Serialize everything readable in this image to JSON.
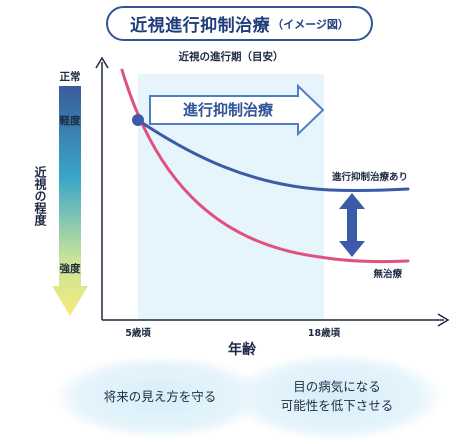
{
  "title": {
    "main": "近視進行抑制治療",
    "sub": "（イメージ図）"
  },
  "chart_data": {
    "type": "line",
    "title": "近視の進行期（目安）",
    "xlabel": "年齢",
    "ylabel": "近視の程度",
    "x_ticks": [
      "5歳頃",
      "18歳頃"
    ],
    "y_scale_labels": [
      "正常",
      "軽度",
      "強度"
    ],
    "band_label": "進行抑制治療",
    "series": [
      {
        "name": "進行抑制治療あり",
        "color": "#3b5aa8"
      },
      {
        "name": "無治療",
        "color": "#e2507f"
      }
    ],
    "comparison_arrow": true
  },
  "colors": {
    "band": "#e6f4fb",
    "gradient": [
      "#3a5c9b",
      "#3aa6c9",
      "#c8e39a",
      "#f6ea7c"
    ],
    "arrow_outline": "#4f7ec4",
    "axis": "#1f2a44"
  },
  "bubbles": {
    "left": [
      "将来の見え方を守る"
    ],
    "right": [
      "目の病気になる",
      "可能性を低下させる"
    ]
  }
}
